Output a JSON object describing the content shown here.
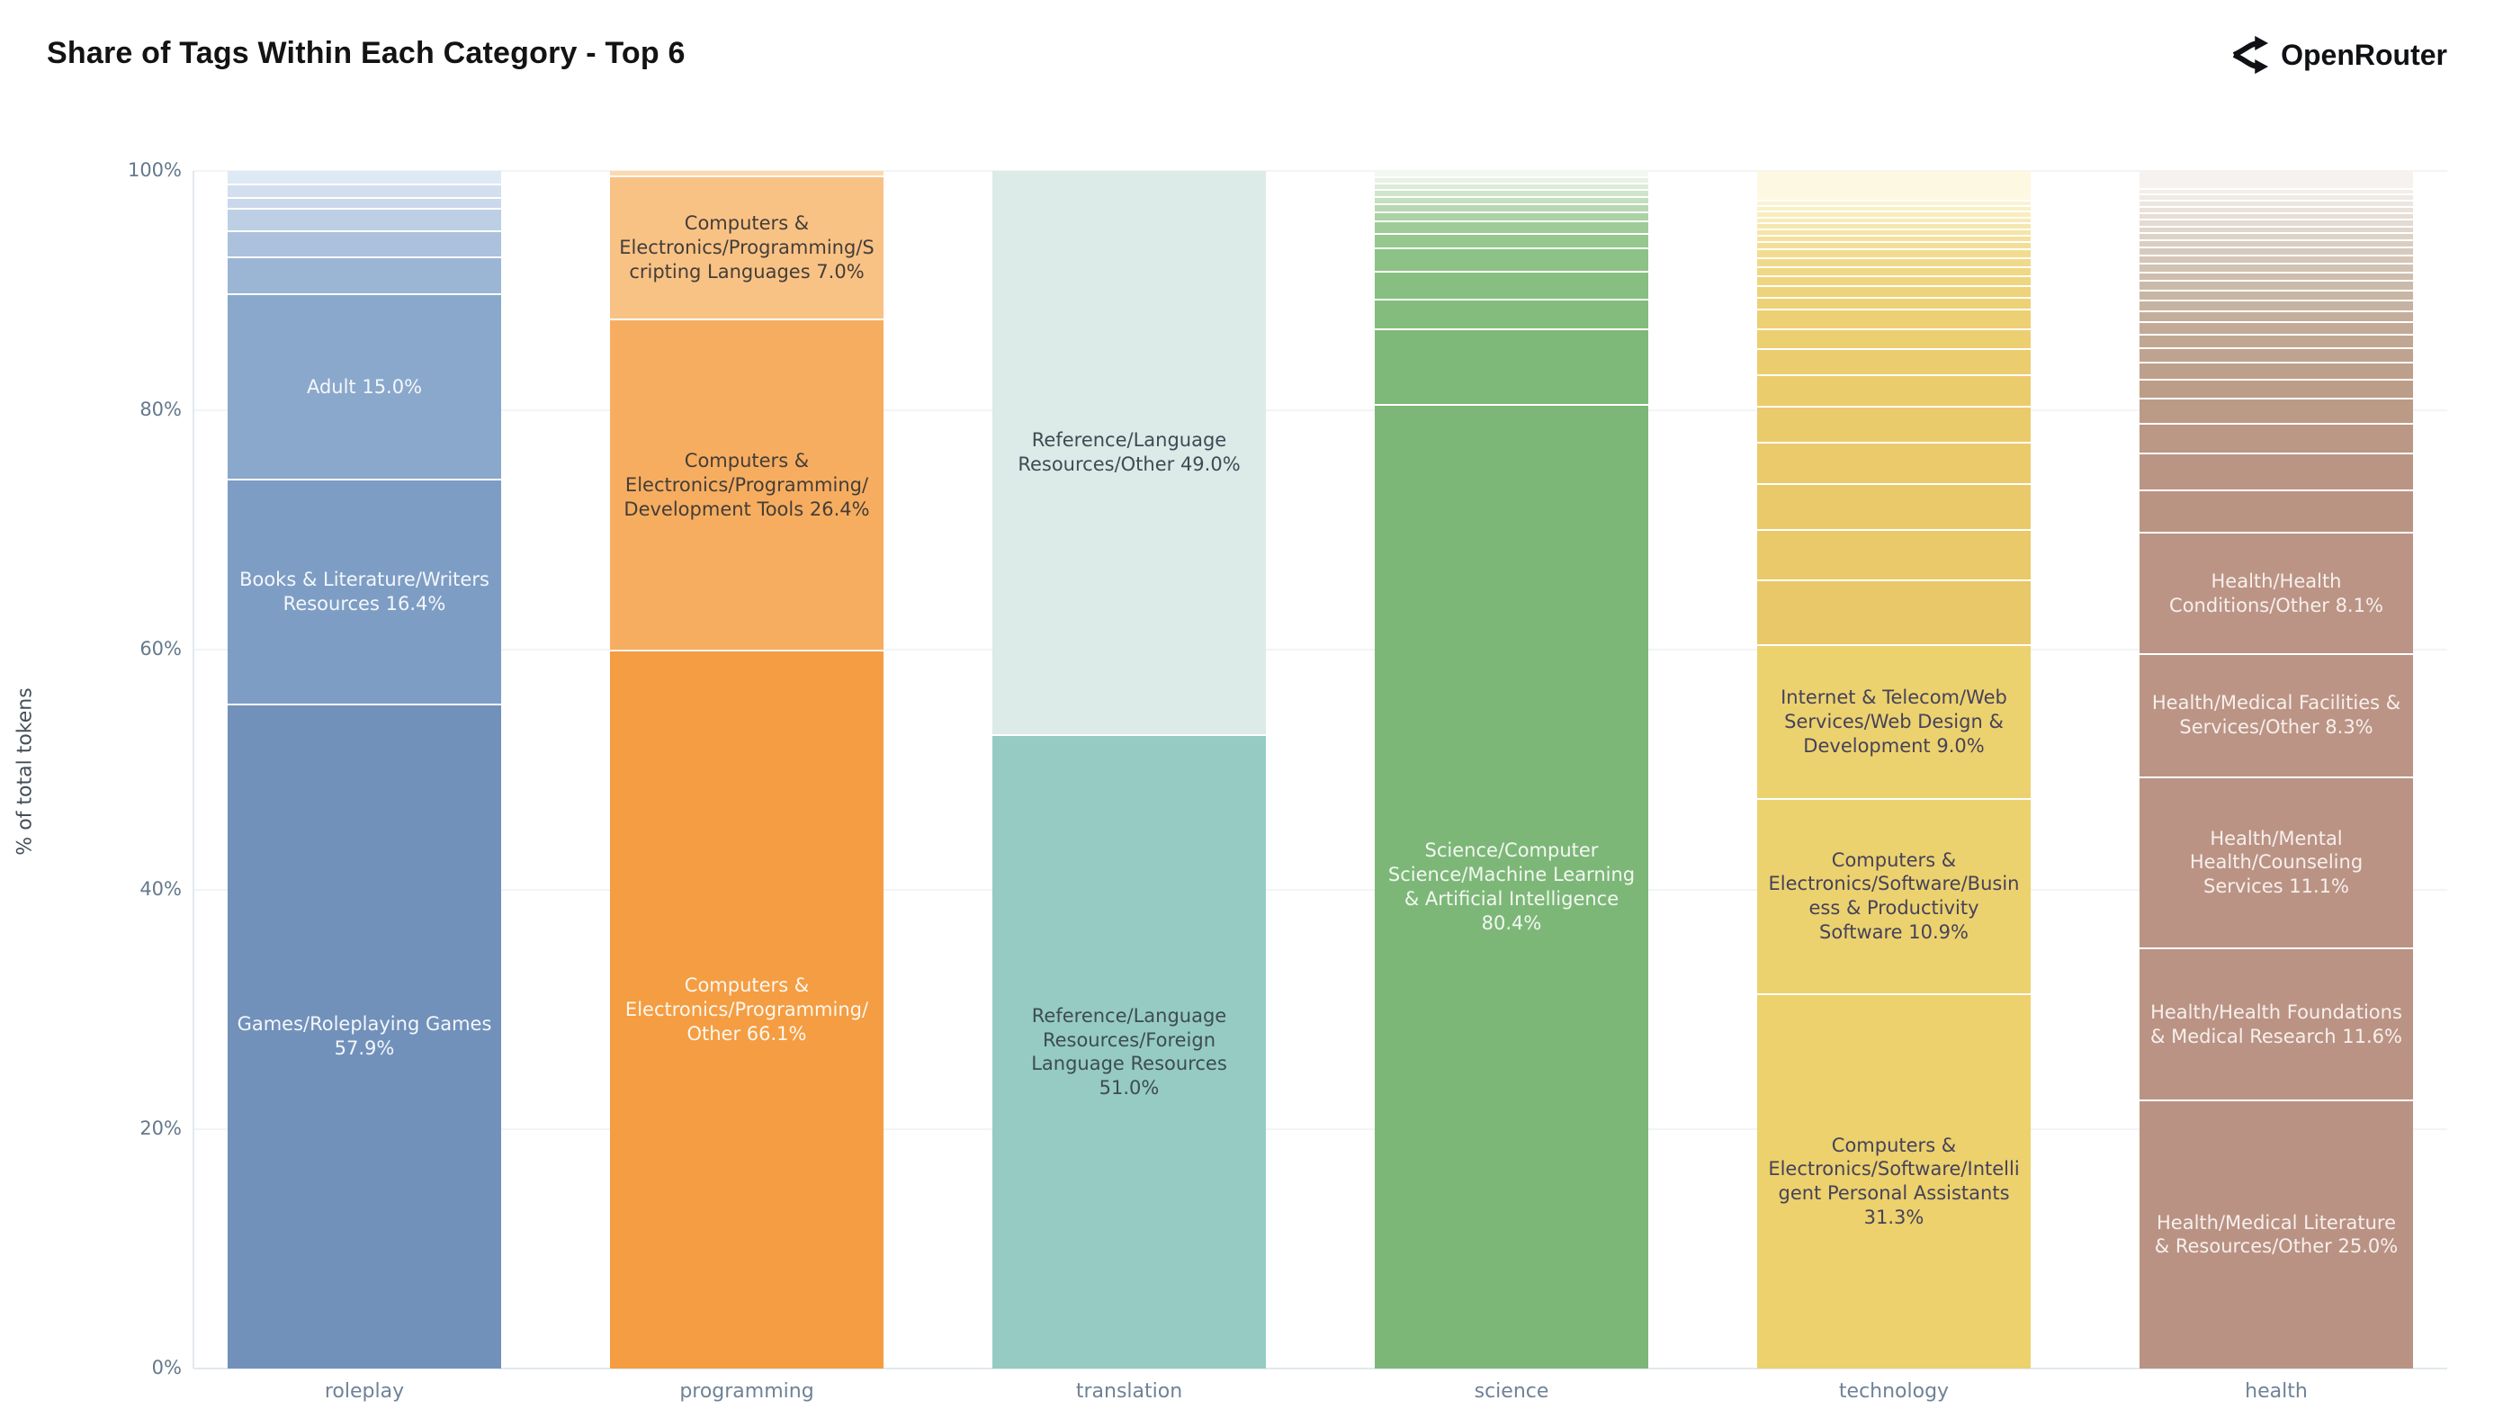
{
  "header": {
    "title": "Share of Tags Within Each Category - Top 6",
    "brand": "OpenRouter",
    "brand_icon": "openrouter-fork-arrows-icon",
    "brand_color": "#101114"
  },
  "chart_data": {
    "type": "bar",
    "stacked": true,
    "normalized": "percent",
    "title": "Share of Tags Within Each Category - Top 6",
    "xlabel": "",
    "ylabel": "% of total tokens",
    "ylim": [
      0,
      100
    ],
    "yticks": [
      "0%",
      "20%",
      "40%",
      "60%",
      "80%",
      "100%"
    ],
    "grid": "horizontal-light",
    "legend": "none",
    "categories": [
      "roleplay",
      "programming",
      "translation",
      "science",
      "technology",
      "health"
    ],
    "bars": [
      {
        "category": "roleplay",
        "base_color": "#7191ba",
        "segments": [
          {
            "label": "",
            "value": 1.2,
            "color": "#dde9f4"
          },
          {
            "label": "",
            "value": 1.1,
            "color": "#d3dfee"
          },
          {
            "label": "",
            "value": 0.8,
            "color": "#c9d8ea"
          },
          {
            "label": "",
            "value": 2.0,
            "color": "#bccfe4"
          },
          {
            "label": "",
            "value": 2.3,
            "color": "#abc1dc"
          },
          {
            "label": "",
            "value": 3.3,
            "color": "#9bb5d4"
          },
          {
            "label": "Adult 15.0%",
            "value": 15.0,
            "color": "#8aa8cb",
            "text_color": "#f4f7fb"
          },
          {
            "label": "Books & Literature/Writers Resources 16.4%",
            "value": 16.4,
            "color": "#7e9dc4",
            "text_color": "#f4f7fb"
          },
          {
            "label": "Games/Roleplaying Games 57.9%",
            "value": 57.9,
            "color": "#7191ba",
            "text_color": "#f4f7fb"
          }
        ]
      },
      {
        "category": "programming",
        "base_color": "#f49d42",
        "segments": [
          {
            "label": "",
            "value": 0.5,
            "color": "#fbd9af"
          },
          {
            "label": "Computers & Electronics/Programming/Scripting Languages 7.0%",
            "value": 7.0,
            "color": "#f9c285",
            "text_color": "#433e38"
          },
          {
            "label": "Computers & Electronics/Programming/Development Tools 26.4%",
            "value": 26.4,
            "color": "#f7ad60",
            "text_color": "#433e38"
          },
          {
            "label": "Computers & Electronics/Programming/Other 66.1%",
            "value": 66.1,
            "color": "#f49d42",
            "text_color": "#fdf7ef"
          }
        ]
      },
      {
        "category": "translation",
        "base_color": "#95cbc3",
        "segments": [
          {
            "label": "Reference/Language Resources/Other 49.0%",
            "value": 49.0,
            "color": "#dceae8",
            "text_color": "#3e4b54"
          },
          {
            "label": "Reference/Language Resources/Foreign Language Resources 51.0%",
            "value": 51.0,
            "color": "#95cbc3",
            "text_color": "#3e4b54"
          }
        ]
      },
      {
        "category": "science",
        "base_color": "#7cb778",
        "segments": [
          {
            "label": "",
            "value": 0.5,
            "color": "#f3f8f2"
          },
          {
            "label": "",
            "value": 0.4,
            "color": "#e7f2e5"
          },
          {
            "label": "",
            "value": 0.4,
            "color": "#dbecd8"
          },
          {
            "label": "",
            "value": 0.5,
            "color": "#cfe5cb"
          },
          {
            "label": "",
            "value": 0.5,
            "color": "#c3dfbf"
          },
          {
            "label": "",
            "value": 0.6,
            "color": "#b7d8b2"
          },
          {
            "label": "",
            "value": 0.7,
            "color": "#abd2a5"
          },
          {
            "label": "",
            "value": 1.0,
            "color": "#9fcb99"
          },
          {
            "label": "",
            "value": 1.2,
            "color": "#95c78f"
          },
          {
            "label": "",
            "value": 2.0,
            "color": "#8dc287"
          },
          {
            "label": "",
            "value": 2.4,
            "color": "#87bf81"
          },
          {
            "label": "",
            "value": 2.6,
            "color": "#83bc7d"
          },
          {
            "label": "",
            "value": 6.8,
            "color": "#7fb97a"
          },
          {
            "label": "Science/Computer Science/Machine Learning & Artificial Intelligence 80.4%",
            "value": 80.4,
            "color": "#7cb778",
            "text_color": "#f3f8f1"
          }
        ]
      },
      {
        "category": "technology",
        "base_color": "#ecd26e",
        "segments": [
          {
            "label": "",
            "value": 3.3,
            "color": "#fcf8e2"
          },
          {
            "label": "",
            "value": 0.4,
            "color": "#faf3d2"
          },
          {
            "label": "",
            "value": 0.4,
            "color": "#f9f0c8"
          },
          {
            "label": "",
            "value": 0.45,
            "color": "#f8edbf"
          },
          {
            "label": "",
            "value": 0.45,
            "color": "#f7eab6"
          },
          {
            "label": "",
            "value": 0.5,
            "color": "#f6e7ae"
          },
          {
            "label": "",
            "value": 0.5,
            "color": "#f5e4a6"
          },
          {
            "label": "",
            "value": 0.55,
            "color": "#f4e19e"
          },
          {
            "label": "",
            "value": 0.55,
            "color": "#f3de97"
          },
          {
            "label": "",
            "value": 0.8,
            "color": "#f2dc90"
          },
          {
            "label": "",
            "value": 0.8,
            "color": "#f1d98a"
          },
          {
            "label": "",
            "value": 0.9,
            "color": "#f0d784"
          },
          {
            "label": "",
            "value": 0.9,
            "color": "#efd57f"
          },
          {
            "label": "",
            "value": 1.1,
            "color": "#eed37a"
          },
          {
            "label": "",
            "value": 1.1,
            "color": "#edd176"
          },
          {
            "label": "",
            "value": 2.0,
            "color": "#ecd073"
          },
          {
            "label": "",
            "value": 2.1,
            "color": "#eccf71"
          },
          {
            "label": "",
            "value": 2.7,
            "color": "#ebcd6f"
          },
          {
            "label": "",
            "value": 3.4,
            "color": "#ebcc6d"
          },
          {
            "label": "",
            "value": 3.8,
            "color": "#eacb6c"
          },
          {
            "label": "",
            "value": 4.5,
            "color": "#eaca6b"
          },
          {
            "label": "",
            "value": 5.0,
            "color": "#e9c96a"
          },
          {
            "label": "",
            "value": 5.5,
            "color": "#e9c969"
          },
          {
            "label": "",
            "value": 7.1,
            "color": "#e8c868"
          },
          {
            "label": "Internet & Telecom/Web Services/Web Design & Development 9.0%",
            "value": 9.0,
            "color": "#ecd26e",
            "text_color": "#46425a"
          },
          {
            "label": "Computers & Electronics/Software/Business & Productivity Software 10.9%",
            "value": 10.9,
            "color": "#ecd26e",
            "text_color": "#46425a"
          },
          {
            "label": "Computers & Electronics/Software/Intelligent Personal Assistants 31.3%",
            "value": 31.3,
            "color": "#ecd16d",
            "text_color": "#46425a"
          }
        ]
      },
      {
        "category": "health",
        "base_color": "#bb9486",
        "segments": [
          {
            "label": "",
            "value": 1.9,
            "color": "#f5f2ef"
          },
          {
            "label": "",
            "value": 0.5,
            "color": "#f2eeea"
          },
          {
            "label": "",
            "value": 0.5,
            "color": "#efeae5"
          },
          {
            "label": "",
            "value": 0.5,
            "color": "#ece6e0"
          },
          {
            "label": "",
            "value": 0.5,
            "color": "#e9e2db"
          },
          {
            "label": "",
            "value": 0.5,
            "color": "#e6ded6"
          },
          {
            "label": "",
            "value": 0.6,
            "color": "#e3dad1"
          },
          {
            "label": "",
            "value": 0.6,
            "color": "#e0d6cc"
          },
          {
            "label": "",
            "value": 0.6,
            "color": "#ddd2c7"
          },
          {
            "label": "",
            "value": 0.6,
            "color": "#dacec2"
          },
          {
            "label": "",
            "value": 0.7,
            "color": "#d7cabd"
          },
          {
            "label": "",
            "value": 0.7,
            "color": "#d4c6b8"
          },
          {
            "label": "",
            "value": 0.8,
            "color": "#d1c2b3"
          },
          {
            "label": "",
            "value": 0.8,
            "color": "#cebeae"
          },
          {
            "label": "",
            "value": 0.9,
            "color": "#cbbaa9"
          },
          {
            "label": "",
            "value": 0.9,
            "color": "#c8b6a5"
          },
          {
            "label": "",
            "value": 1.0,
            "color": "#c6b2a0"
          },
          {
            "label": "",
            "value": 1.1,
            "color": "#c4ae9b"
          },
          {
            "label": "",
            "value": 1.2,
            "color": "#c2aa97"
          },
          {
            "label": "",
            "value": 1.3,
            "color": "#c0a793"
          },
          {
            "label": "",
            "value": 1.5,
            "color": "#bfa38f"
          },
          {
            "label": "",
            "value": 1.7,
            "color": "#bda08b"
          },
          {
            "label": "",
            "value": 2.0,
            "color": "#bc9d88"
          },
          {
            "label": "",
            "value": 2.6,
            "color": "#bb9a86"
          },
          {
            "label": "",
            "value": 3.2,
            "color": "#bb9785"
          },
          {
            "label": "",
            "value": 4.0,
            "color": "#ba9584"
          },
          {
            "label": "",
            "value": 4.7,
            "color": "#ba9483"
          },
          {
            "label": "Health/Health Conditions/Other 8.1%",
            "value": 8.1,
            "color": "#bb9486",
            "text_color": "#f7f0ec"
          },
          {
            "label": "Health/Medical Facilities & Services/Other 8.3%",
            "value": 8.3,
            "color": "#bb9486",
            "text_color": "#f7f0ec"
          },
          {
            "label": "Health/Mental Health/Counseling Services 11.1%",
            "value": 11.1,
            "color": "#ba9385",
            "text_color": "#f7f0ec"
          },
          {
            "label": "Health/Health Foundations & Medical Research 11.6%",
            "value": 11.6,
            "color": "#ba9385",
            "text_color": "#f7f0ec"
          },
          {
            "label": "Health/Medical Literature & Resources/Other 25.0%",
            "value": 25.0,
            "color": "#b99284",
            "text_color": "#f7f0ec"
          }
        ]
      }
    ]
  }
}
